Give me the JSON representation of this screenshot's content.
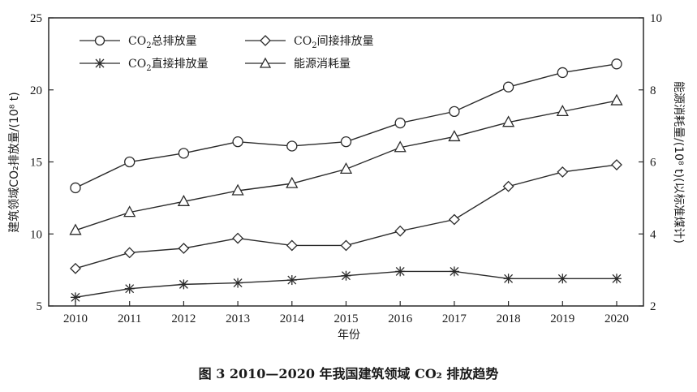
{
  "chart_data": {
    "type": "line",
    "title": "",
    "caption": "图 3   2010—2020 年我国建筑领域 CO₂ 排放趋势",
    "xlabel": "年份",
    "ylabel": "建筑领域CO₂排放量/(10⁸ t)",
    "y2label": "能源消耗量/(10⁸ t)(以标准煤计)",
    "x": [
      2010,
      2011,
      2012,
      2013,
      2014,
      2015,
      2016,
      2017,
      2018,
      2019,
      2020
    ],
    "ylim": [
      5,
      25
    ],
    "yticks": [
      5,
      10,
      15,
      20,
      25
    ],
    "y2lim": [
      2,
      10
    ],
    "y2ticks": [
      2,
      4,
      6,
      8,
      10
    ],
    "grid": false,
    "legend_position": "upper-left, inside, 2 columns",
    "series": [
      {
        "name": "CO₂总排放量",
        "axis": "left",
        "marker": "circle",
        "values": [
          13.2,
          15.0,
          15.6,
          16.4,
          16.1,
          16.4,
          17.7,
          18.5,
          20.2,
          21.2,
          21.8
        ]
      },
      {
        "name": "CO₂直接排放量",
        "axis": "left",
        "marker": "star",
        "values": [
          5.6,
          6.2,
          6.5,
          6.6,
          6.8,
          7.1,
          7.4,
          7.4,
          6.9,
          6.9,
          6.9
        ]
      },
      {
        "name": "CO₂间接排放量",
        "axis": "left",
        "marker": "diamond",
        "values": [
          7.6,
          8.7,
          9.0,
          9.7,
          9.2,
          9.2,
          10.2,
          11.0,
          13.3,
          14.3,
          14.8
        ]
      },
      {
        "name": "能源消耗量",
        "axis": "right",
        "marker": "triangle",
        "values": [
          4.1,
          4.6,
          4.9,
          5.2,
          5.4,
          5.8,
          6.4,
          6.7,
          7.1,
          7.4,
          7.7
        ]
      }
    ]
  },
  "legend": {
    "total": {
      "prefix": "CO",
      "sub": "2",
      "suffix": "总排放量"
    },
    "direct": {
      "prefix": "CO",
      "sub": "2",
      "suffix": "直接排放量"
    },
    "indirect": {
      "prefix": "CO",
      "sub": "2",
      "suffix": "间接排放量"
    },
    "energy": {
      "label": "能源消耗量"
    }
  },
  "axes": {
    "xlabel": "年份",
    "ylabel_left": "建筑领域CO₂排放量/(10⁸ t)",
    "ylabel_right": "能源消耗量/(10⁸ t)(以标准煤计)"
  },
  "caption": "图 3   2010—2020 年我国建筑领域 CO₂ 排放趋势",
  "colors": {
    "line": "#2a2a2a",
    "background": "#ffffff"
  }
}
